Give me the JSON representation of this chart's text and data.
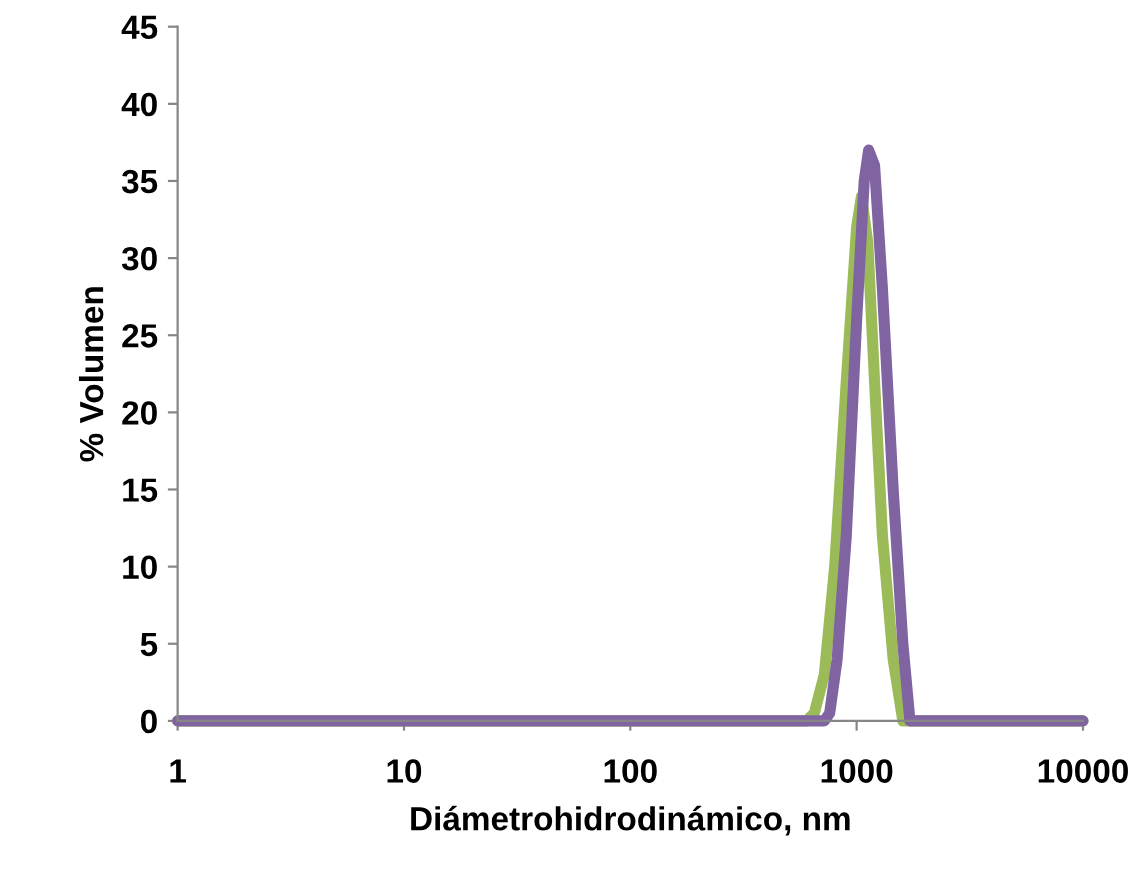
{
  "chart_data": {
    "type": "line",
    "xlabel": "Diámetrohidrodinámico, nm",
    "ylabel": "% Volumen",
    "log": "x",
    "xlim": [
      1,
      10000
    ],
    "xticks": [
      1,
      10,
      100,
      1000,
      10000
    ],
    "ylim": [
      0,
      45
    ],
    "yticks": [
      0,
      5,
      10,
      15,
      20,
      25,
      30,
      35,
      40,
      45
    ],
    "grid": false,
    "legend": false,
    "marker": "none",
    "line_style": "solid",
    "series": [
      {
        "color": "#9bbb59",
        "x": [
          1,
          600,
          650,
          720,
          800,
          900,
          1000,
          1050,
          1120,
          1200,
          1300,
          1450,
          1600,
          10000
        ],
        "values": [
          0,
          0,
          0.5,
          3,
          10,
          22,
          32,
          34,
          31,
          22,
          12,
          4,
          0,
          0
        ]
      },
      {
        "color": "#8064a2",
        "x": [
          1,
          720,
          760,
          820,
          900,
          1000,
          1080,
          1130,
          1200,
          1300,
          1450,
          1600,
          1720,
          10000
        ],
        "values": [
          0,
          0,
          0.5,
          4,
          12,
          26,
          35,
          37,
          36,
          28,
          15,
          5,
          0,
          0
        ]
      }
    ]
  }
}
